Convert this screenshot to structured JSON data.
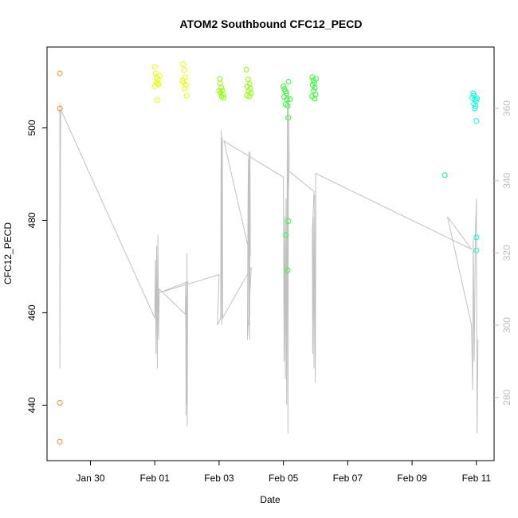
{
  "chart_data": {
    "type": "scatter",
    "title": "ATOM2 Southbound CFC12_PECD",
    "xlabel": "Date",
    "ylabel": "CFC12_PECD",
    "x_ticks": [
      {
        "value": 0,
        "label": "Jan 30"
      },
      {
        "value": 2,
        "label": "Feb 01"
      },
      {
        "value": 4,
        "label": "Feb 03"
      },
      {
        "value": 6,
        "label": "Feb 05"
      },
      {
        "value": 8,
        "label": "Feb 07"
      },
      {
        "value": 10,
        "label": "Feb 09"
      },
      {
        "value": 12,
        "label": "Feb 11"
      }
    ],
    "xlim": [
      -1.35,
      12.55
    ],
    "ylim": [
      428,
      517.5
    ],
    "y_ticks": [
      440,
      460,
      480,
      500
    ],
    "right_axis": {
      "ylim": [
        262.5,
        377
      ],
      "ticks": [
        280,
        300,
        320,
        340,
        360
      ],
      "color": "#bebebe"
    },
    "grid": false,
    "series": [
      {
        "color": "#ff8c2a",
        "points": [
          [
            -0.95,
            511.8
          ],
          [
            -0.95,
            504.2
          ],
          [
            -0.95,
            440.5
          ],
          [
            -0.95,
            432.1
          ]
        ]
      },
      {
        "color": "#e8ff00",
        "points": [
          [
            2.0,
            513.2
          ],
          [
            2.03,
            511.8
          ],
          [
            2.06,
            511.0
          ],
          [
            2.09,
            510.5
          ],
          [
            2.05,
            509.8
          ],
          [
            2.12,
            509.4
          ],
          [
            2.0,
            509.0
          ],
          [
            2.08,
            506.0
          ],
          [
            2.15,
            511.3
          ],
          [
            2.1,
            509.6
          ],
          [
            2.88,
            513.8
          ],
          [
            2.92,
            512.5
          ],
          [
            2.95,
            511.0
          ],
          [
            2.9,
            509.8
          ],
          [
            2.97,
            509.3
          ],
          [
            2.93,
            508.5
          ],
          [
            2.99,
            507.0
          ],
          [
            2.86,
            510.2
          ]
        ]
      },
      {
        "color": "#8cff00",
        "points": [
          [
            4.02,
            510.6
          ],
          [
            4.04,
            509.6
          ],
          [
            4.07,
            508.7
          ],
          [
            4.1,
            508.1
          ],
          [
            4.05,
            507.6
          ],
          [
            4.12,
            507.2
          ],
          [
            4.08,
            506.8
          ],
          [
            4.14,
            506.5
          ],
          [
            4.0,
            508.0
          ],
          [
            4.85,
            512.6
          ],
          [
            4.9,
            510.5
          ],
          [
            4.95,
            509.5
          ],
          [
            4.88,
            509.0
          ],
          [
            4.97,
            508.5
          ],
          [
            4.92,
            508.0
          ],
          [
            4.99,
            507.5
          ],
          [
            4.87,
            507.0
          ],
          [
            4.94,
            506.8
          ]
        ]
      },
      {
        "color": "#2eff2e",
        "points": [
          [
            6.0,
            509.0
          ],
          [
            6.03,
            508.4
          ],
          [
            6.06,
            507.9
          ],
          [
            6.09,
            507.5
          ],
          [
            6.02,
            506.7
          ],
          [
            6.11,
            506.2
          ],
          [
            6.07,
            505.1
          ],
          [
            6.13,
            504.8
          ],
          [
            6.16,
            510.0
          ],
          [
            6.2,
            506.2
          ],
          [
            6.15,
            502.2
          ],
          [
            6.08,
            476.8
          ],
          [
            6.15,
            479.8
          ],
          [
            6.13,
            469.2
          ],
          [
            6.9,
            511.0
          ],
          [
            6.93,
            510.3
          ],
          [
            6.96,
            509.8
          ],
          [
            6.91,
            509.3
          ],
          [
            6.98,
            508.7
          ],
          [
            6.94,
            508.0
          ],
          [
            7.0,
            507.2
          ],
          [
            6.89,
            506.8
          ],
          [
            6.97,
            506.3
          ],
          [
            7.02,
            510.6
          ]
        ]
      },
      {
        "color": "#00ffa8",
        "points": [
          [
            11.02,
            489.8
          ]
        ]
      },
      {
        "color": "#00ffd5",
        "points": [
          [
            11.87,
            506.5
          ],
          [
            11.9,
            507.5
          ],
          [
            11.93,
            507.0
          ],
          [
            11.96,
            506.2
          ],
          [
            11.99,
            505.8
          ],
          [
            11.92,
            505.2
          ],
          [
            11.97,
            504.7
          ],
          [
            12.02,
            506.4
          ],
          [
            11.95,
            504.2
          ],
          [
            12.0,
            501.5
          ],
          [
            12.0,
            476.3
          ],
          [
            12.0,
            473.5
          ]
        ]
      }
    ],
    "right_axis_line": {
      "color": "#c0c0c0",
      "points": [
        [
          -0.95,
          361.5
        ],
        [
          -0.95,
          288
        ],
        [
          -0.93,
          356
        ],
        [
          -0.92,
          359.6
        ],
        [
          2.0,
          302
        ],
        [
          2.02,
          318
        ],
        [
          2.04,
          292
        ],
        [
          2.06,
          322
        ],
        [
          2.08,
          288
        ],
        [
          2.1,
          325
        ],
        [
          2.12,
          296
        ],
        [
          2.14,
          310
        ],
        [
          2.95,
          303
        ],
        [
          2.96,
          312
        ],
        [
          2.97,
          275
        ],
        [
          2.98,
          308
        ],
        [
          2.99,
          278
        ],
        [
          3.0,
          320
        ],
        [
          3.01,
          272
        ],
        [
          3.02,
          312
        ],
        [
          2.15,
          309
        ],
        [
          4.0,
          314
        ],
        [
          3.95,
          300
        ],
        [
          4.05,
          302
        ],
        [
          4.06,
          340
        ],
        [
          4.07,
          354
        ],
        [
          4.08,
          300
        ],
        [
          4.09,
          350
        ],
        [
          4.1,
          352
        ],
        [
          4.11,
          302
        ],
        [
          5.0,
          316
        ],
        [
          4.88,
          296
        ],
        [
          4.9,
          333
        ],
        [
          4.91,
          346
        ],
        [
          4.92,
          300
        ],
        [
          4.93,
          348
        ],
        [
          4.95,
          296
        ],
        [
          4.96,
          348
        ],
        [
          4.97,
          319
        ],
        [
          4.15,
          351
        ],
        [
          6.0,
          341
        ],
        [
          6.02,
          290
        ],
        [
          6.04,
          330
        ],
        [
          6.06,
          285
        ],
        [
          6.08,
          335
        ],
        [
          6.1,
          278
        ],
        [
          6.12,
          360
        ],
        [
          6.14,
          270
        ],
        [
          6.16,
          365
        ],
        [
          6.18,
          345
        ],
        [
          6.15,
          335
        ],
        [
          6.12,
          343
        ],
        [
          6.95,
          337
        ],
        [
          6.9,
          326
        ],
        [
          6.91,
          292
        ],
        [
          6.93,
          330
        ],
        [
          6.95,
          288
        ],
        [
          6.97,
          336
        ],
        [
          6.99,
          284
        ],
        [
          7.01,
          330
        ],
        [
          7.0,
          342
        ],
        [
          11.85,
          321
        ],
        [
          11.1,
          330
        ],
        [
          11.85,
          300
        ],
        [
          11.88,
          282
        ],
        [
          11.9,
          324
        ],
        [
          11.93,
          290
        ],
        [
          11.97,
          326
        ],
        [
          12.0,
          335
        ],
        [
          12.02,
          270
        ],
        [
          12.05,
          296
        ]
      ]
    }
  }
}
